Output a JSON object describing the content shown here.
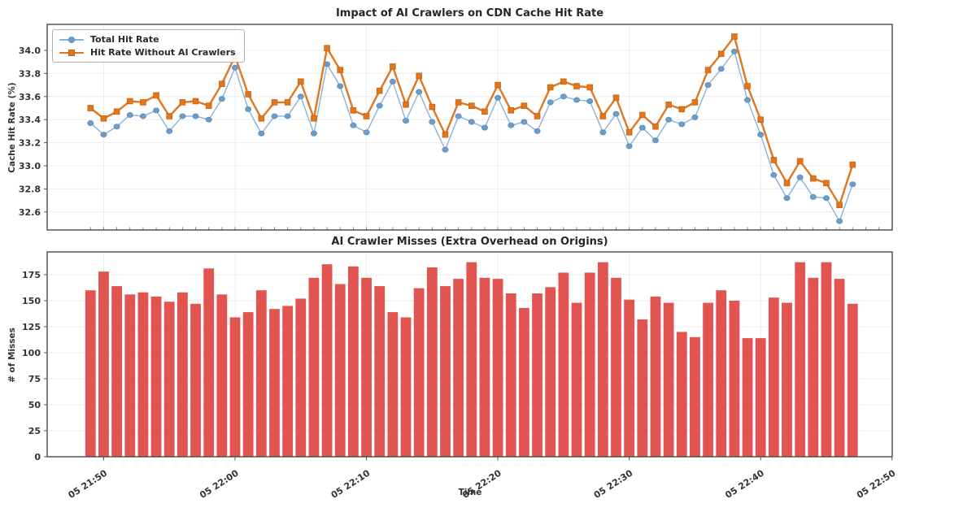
{
  "chart_data": [
    {
      "type": "line",
      "title": "Impact of AI Crawlers on CDN Cache Hit Rate",
      "ylabel": "Cache Hit Rate (%)",
      "ylim": [
        32.44,
        34.22
      ],
      "yticks": [
        34.0,
        33.8,
        33.6,
        33.4,
        33.2,
        33.0,
        32.8,
        32.6
      ],
      "x_tick_labels": [
        "05 21:50",
        "05 22:00",
        "05 22:10",
        "05 22:20",
        "05 22:30",
        "05 22:40",
        "05 22:50"
      ],
      "x_start": "05 21:49",
      "x_end": "05 22:47",
      "x_step_minutes": 1,
      "grid": true,
      "legend_position": "upper left",
      "series": [
        {
          "name": "Total Hit Rate",
          "marker": "circle",
          "line_color": "#8ab2d6",
          "marker_color": "#6d9cc8",
          "values": [
            33.37,
            33.27,
            33.34,
            33.44,
            33.43,
            33.48,
            33.3,
            33.43,
            33.43,
            33.4,
            33.58,
            33.85,
            33.49,
            33.28,
            33.43,
            33.43,
            33.6,
            33.28,
            33.88,
            33.69,
            33.35,
            33.29,
            33.52,
            33.73,
            33.39,
            33.64,
            33.38,
            33.14,
            33.43,
            33.38,
            33.33,
            33.59,
            33.35,
            33.38,
            33.3,
            33.55,
            33.6,
            33.57,
            33.56,
            33.29,
            33.45,
            33.17,
            33.33,
            33.22,
            33.4,
            33.36,
            33.42,
            33.7,
            33.84,
            33.99,
            33.57,
            33.27,
            32.92,
            32.72,
            32.9,
            32.73,
            32.72,
            32.52,
            32.84
          ]
        },
        {
          "name": "Hit Rate Without AI Crawlers",
          "marker": "square",
          "line_color": "#e0761f",
          "marker_color": "#e0761f",
          "values": [
            33.5,
            33.41,
            33.47,
            33.56,
            33.55,
            33.61,
            33.43,
            33.55,
            33.56,
            33.52,
            33.71,
            33.95,
            33.62,
            33.41,
            33.55,
            33.55,
            33.73,
            33.41,
            34.02,
            33.83,
            33.48,
            33.43,
            33.65,
            33.86,
            33.53,
            33.78,
            33.51,
            33.27,
            33.55,
            33.52,
            33.47,
            33.7,
            33.48,
            33.52,
            33.43,
            33.68,
            33.73,
            33.69,
            33.68,
            33.43,
            33.59,
            33.29,
            33.44,
            33.34,
            33.53,
            33.49,
            33.55,
            33.83,
            33.97,
            34.12,
            33.69,
            33.4,
            33.05,
            32.85,
            33.04,
            32.89,
            32.85,
            32.66,
            33.01
          ]
        }
      ]
    },
    {
      "type": "bar",
      "title": "AI Crawler Misses (Extra Overhead on Origins)",
      "ylabel": "# of Misses",
      "xlabel": "Time",
      "ylim": [
        0,
        197
      ],
      "yticks": [
        0,
        25,
        50,
        75,
        100,
        125,
        150,
        175
      ],
      "x_tick_labels": [
        "05 21:50",
        "05 22:00",
        "05 22:10",
        "05 22:20",
        "05 22:30",
        "05 22:40",
        "05 22:50"
      ],
      "x_start": "05 21:49",
      "x_end": "05 22:47",
      "x_step_minutes": 1,
      "grid": true,
      "bar_color": "#e25450",
      "values": [
        160,
        178,
        164,
        156,
        158,
        154,
        149,
        158,
        147,
        181,
        156,
        134,
        139,
        160,
        142,
        145,
        152,
        172,
        185,
        166,
        183,
        172,
        164,
        139,
        134,
        162,
        182,
        164,
        171,
        187,
        172,
        171,
        157,
        143,
        157,
        163,
        177,
        148,
        177,
        187,
        172,
        151,
        132,
        154,
        148,
        120,
        115,
        148,
        160,
        150,
        114,
        114,
        153,
        148,
        187,
        172,
        187,
        171,
        147
      ]
    }
  ],
  "colors": {
    "grid": "#ececec",
    "spine": "#4a4a4a",
    "tick_text": "#333333",
    "title_text": "#262626",
    "background": "#ffffff"
  }
}
